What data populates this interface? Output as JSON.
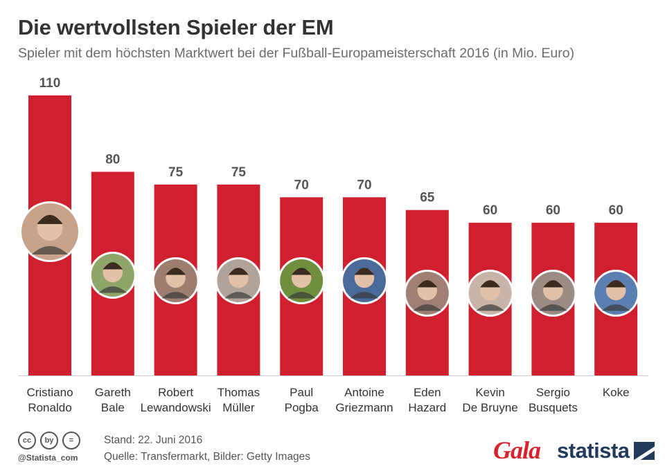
{
  "header": {
    "title": "Die wertvollsten Spieler der EM",
    "subtitle": "Spieler mit dem höchsten Marktwert bei der Fußball-Europameisterschaft 2016 (in Mio. Euro)"
  },
  "chart_data": {
    "type": "bar",
    "title": "Die wertvollsten Spieler der EM",
    "subtitle": "Spieler mit dem höchsten Marktwert bei der Fußball-Europameisterschaft 2016 (in Mio. Euro)",
    "xlabel": "",
    "ylabel": "",
    "ylim": [
      0,
      110
    ],
    "grid": false,
    "categories": [
      [
        "Cristiano",
        "Ronaldo"
      ],
      [
        "Gareth",
        "Bale"
      ],
      [
        "Robert",
        "Lewandowski"
      ],
      [
        "Thomas",
        "Müller"
      ],
      [
        "Paul",
        "Pogba"
      ],
      [
        "Antoine",
        "Griezmann"
      ],
      [
        "Eden",
        "Hazard"
      ],
      [
        "Kevin",
        "De Bruyne"
      ],
      [
        "Sergio",
        "Busquets"
      ],
      [
        "Koke"
      ]
    ],
    "values": [
      110,
      80,
      75,
      75,
      70,
      70,
      65,
      60,
      60,
      60
    ],
    "bar_color": "#d0202f"
  },
  "footer": {
    "stand": "Stand: 22. Juni 2016",
    "source": "Quelle: Transfermarkt, Bilder: Getty Images",
    "handle": "@Statista_com",
    "cc_icons": [
      "cc",
      "by",
      "="
    ]
  },
  "logos": {
    "gala": "Gala",
    "statista": "statista"
  }
}
